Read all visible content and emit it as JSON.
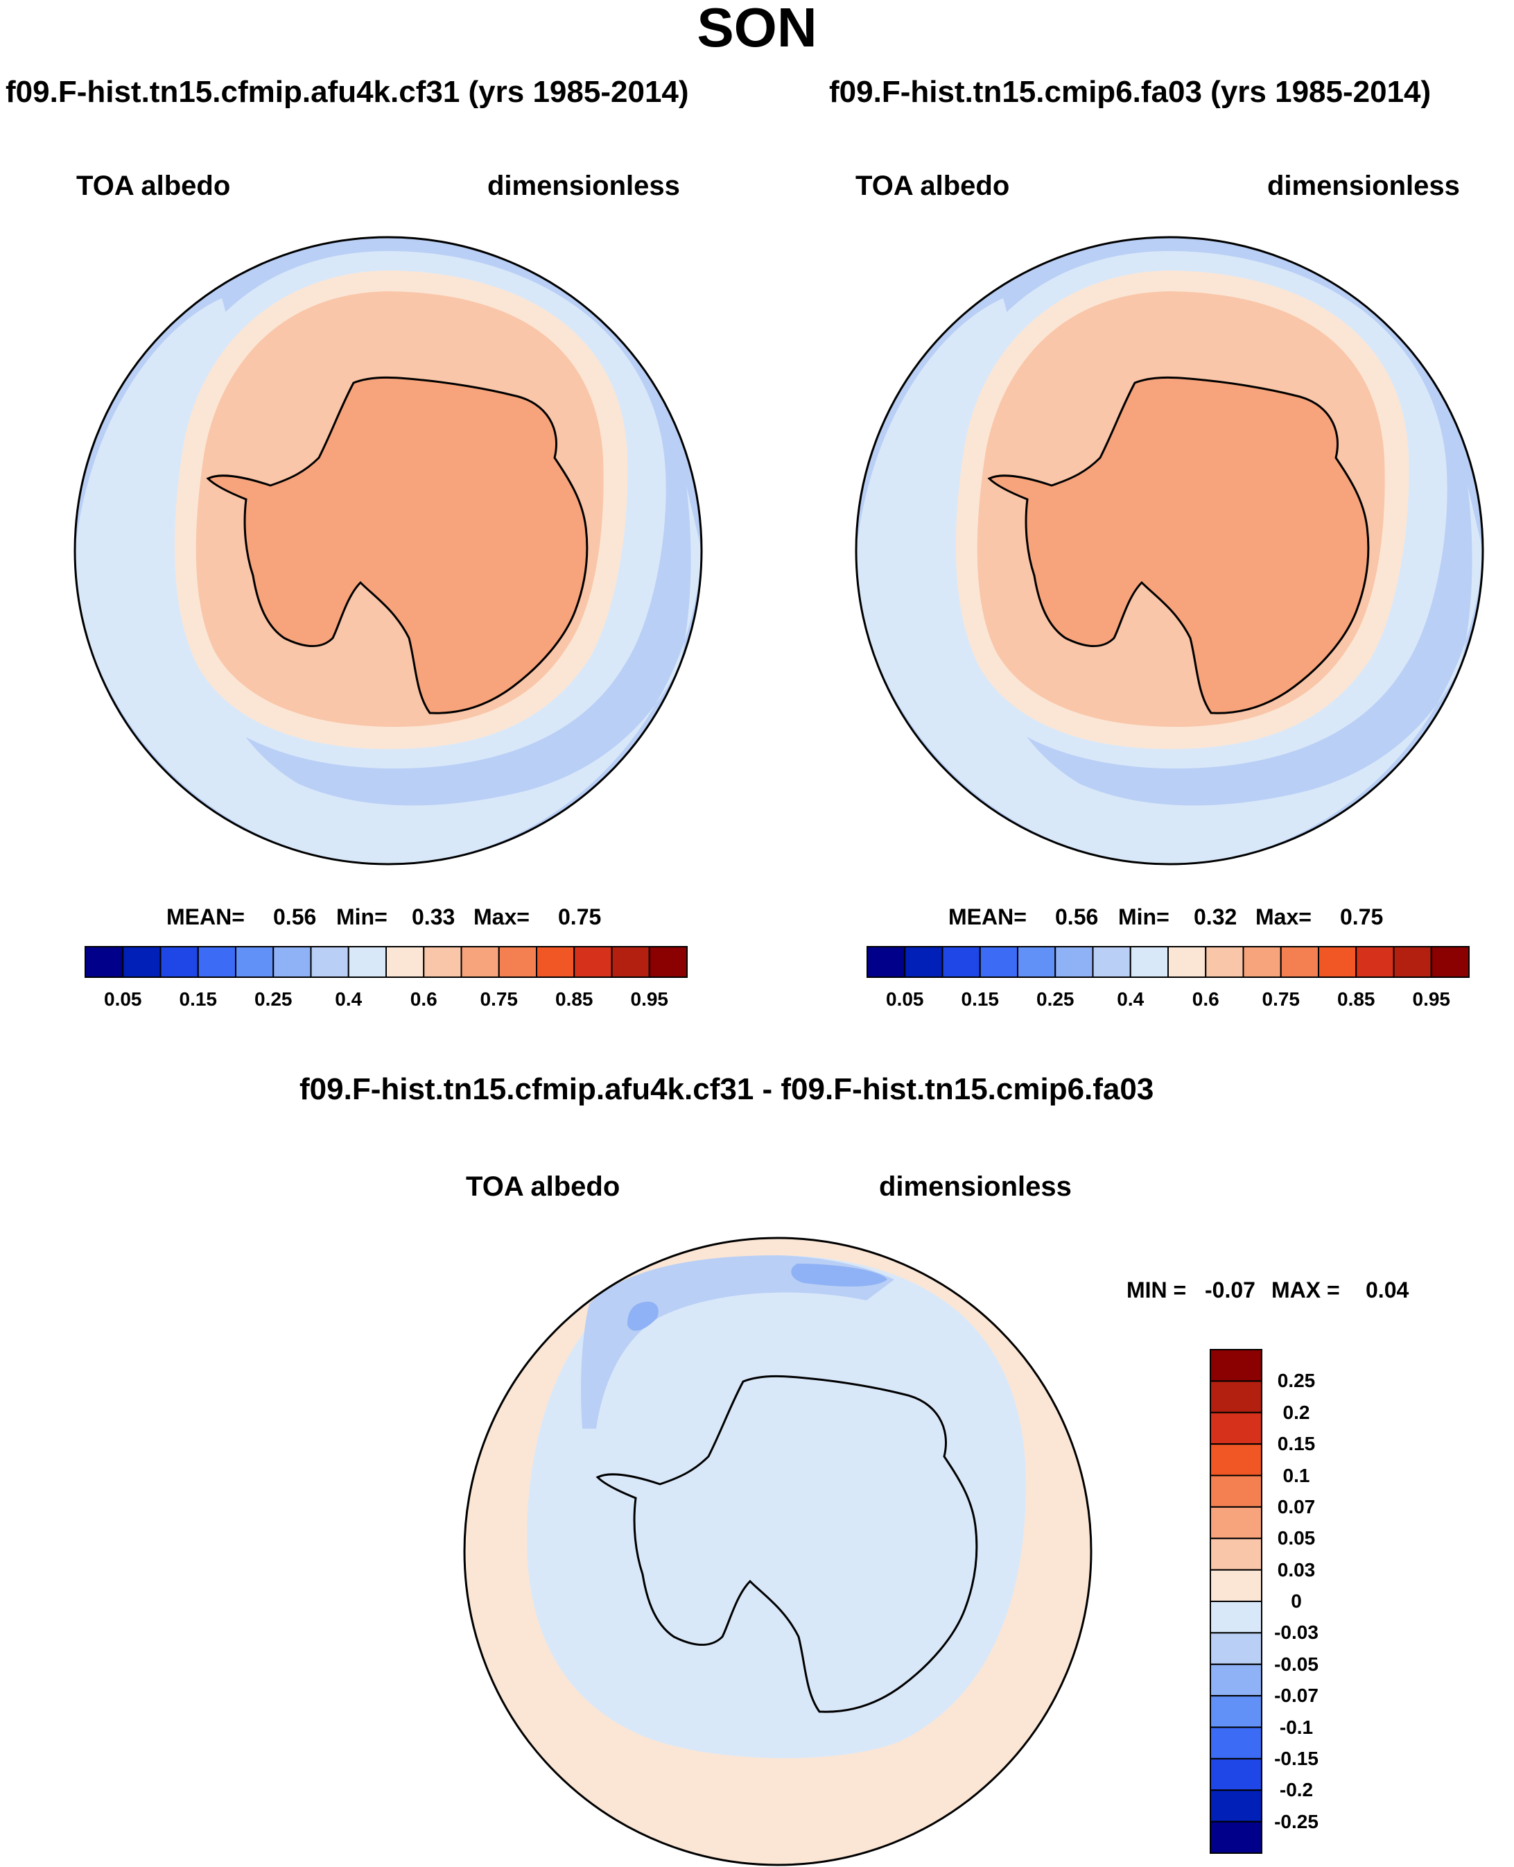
{
  "page": {
    "title": "SON"
  },
  "chart_data": [
    {
      "type": "map",
      "projection": "south polar stereographic",
      "title": "f09.F-hist.tn15.cfmip.afu4k.cf31 (yrs 1985-2014)",
      "variable": "TOA albedo",
      "units": "dimensionless",
      "stats": {
        "mean_label": "MEAN=",
        "mean": "0.56",
        "min_label": "Min=",
        "min": "0.33",
        "max_label": "Max=",
        "max": "0.75"
      },
      "colorbar": {
        "orientation": "horizontal",
        "colors": [
          "#00008b",
          "#0020b8",
          "#1f46e6",
          "#3c6cf5",
          "#6190f7",
          "#8fb1f5",
          "#b9cff5",
          "#d9e8f9",
          "#fbe6d5",
          "#f9c6a9",
          "#f7a47c",
          "#f48052",
          "#f05724",
          "#d6321b",
          "#b3200f",
          "#8b0000"
        ],
        "tick_labels": [
          "0.05",
          "0.15",
          "0.25",
          "0.4",
          "0.6",
          "0.75",
          "0.85",
          "0.95"
        ]
      },
      "field_summary": {
        "antarctic_interior": 0.65,
        "coastal_ring": 0.6,
        "outer_ring": 0.5,
        "midlatitude_ocean": 0.35
      }
    },
    {
      "type": "map",
      "projection": "south polar stereographic",
      "title": "f09.F-hist.tn15.cmip6.fa03 (yrs 1985-2014)",
      "variable": "TOA albedo",
      "units": "dimensionless",
      "stats": {
        "mean_label": "MEAN=",
        "mean": "0.56",
        "min_label": "Min=",
        "min": "0.32",
        "max_label": "Max=",
        "max": "0.75"
      },
      "colorbar": {
        "orientation": "horizontal",
        "colors": [
          "#00008b",
          "#0020b8",
          "#1f46e6",
          "#3c6cf5",
          "#6190f7",
          "#8fb1f5",
          "#b9cff5",
          "#d9e8f9",
          "#fbe6d5",
          "#f9c6a9",
          "#f7a47c",
          "#f48052",
          "#f05724",
          "#d6321b",
          "#b3200f",
          "#8b0000"
        ],
        "tick_labels": [
          "0.05",
          "0.15",
          "0.25",
          "0.4",
          "0.6",
          "0.75",
          "0.85",
          "0.95"
        ]
      },
      "field_summary": {
        "antarctic_interior": 0.65,
        "coastal_ring": 0.6,
        "outer_ring": 0.5,
        "midlatitude_ocean": 0.35
      }
    },
    {
      "type": "map",
      "projection": "south polar stereographic",
      "title": "f09.F-hist.tn15.cfmip.afu4k.cf31 - f09.F-hist.tn15.cmip6.fa03",
      "variable": "TOA albedo",
      "units": "dimensionless",
      "stats": {
        "min_label": "MIN =",
        "min": "-0.07",
        "max_label": "MAX =",
        "max": "0.04"
      },
      "colorbar": {
        "orientation": "vertical",
        "colors_top_to_bottom": [
          "#8b0000",
          "#b3200f",
          "#d6321b",
          "#f05724",
          "#f48052",
          "#f7a47c",
          "#f9c6a9",
          "#fbe6d5",
          "#d9e8f9",
          "#b9cff5",
          "#8fb1f5",
          "#6190f7",
          "#3c6cf5",
          "#1f46e6",
          "#0020b8",
          "#00008b"
        ],
        "tick_labels_top_to_bottom": [
          "0.25",
          "0.2",
          "0.15",
          "0.1",
          "0.07",
          "0.05",
          "0.03",
          "0",
          "-0.03",
          "-0.05",
          "-0.07",
          "-0.1",
          "-0.15",
          "-0.2",
          "-0.25"
        ]
      },
      "field_summary": {
        "antarctic_and_pack_ice": -0.02,
        "outer_ocean_ring": 0.02,
        "weddell_pacific_sector_min": -0.07
      }
    }
  ]
}
